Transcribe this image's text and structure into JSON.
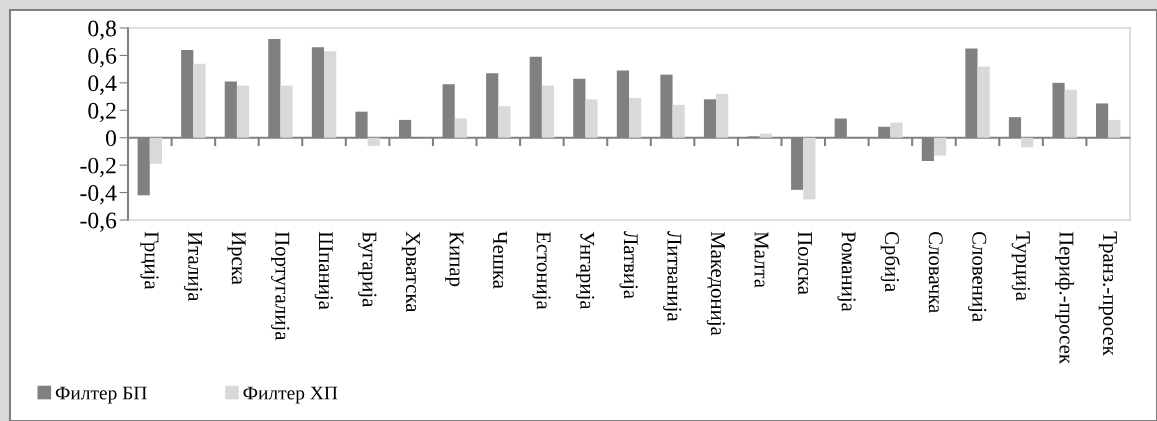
{
  "chart_data": {
    "type": "bar",
    "categories": [
      "Грција",
      "Италија",
      "Ирска",
      "Португалија",
      "Шпанија",
      "Бугарија",
      "Хрватска",
      "Кипар",
      "Чешка",
      "Естонија",
      "Унгарија",
      "Латвија",
      "Литванија",
      "Македонија",
      "Малта",
      "Полска",
      "Романија",
      "Србија",
      "Словачка",
      "Словенија",
      "Турција",
      "Периф.-просек",
      "Транз.-просек"
    ],
    "series": [
      {
        "name": "Филтер БП",
        "color": "#808080",
        "values": [
          -0.42,
          0.64,
          0.41,
          0.72,
          0.66,
          0.19,
          0.13,
          0.39,
          0.47,
          0.59,
          0.43,
          0.49,
          0.46,
          0.28,
          0.01,
          -0.38,
          0.14,
          0.08,
          -0.17,
          0.65,
          0.15,
          0.4,
          0.25
        ]
      },
      {
        "name": "Филтер ХП",
        "color": "#d9d9d9",
        "values": [
          -0.19,
          0.54,
          0.38,
          0.38,
          0.63,
          -0.06,
          0,
          0.14,
          0.23,
          0.38,
          0.28,
          0.29,
          0.24,
          0.32,
          0.03,
          -0.45,
          null,
          0.11,
          -0.13,
          0.52,
          -0.07,
          0.35,
          0.13
        ]
      }
    ],
    "ylim": [
      -0.6,
      0.8
    ],
    "yticks": [
      {
        "value": -0.6,
        "label": "-0,6"
      },
      {
        "value": -0.4,
        "label": "-0,4"
      },
      {
        "value": -0.2,
        "label": "-0,2"
      },
      0,
      {
        "value": 0.2,
        "label": "0,2"
      },
      {
        "value": 0.4,
        "label": "0,4"
      },
      {
        "value": 0.6,
        "label": "0,6"
      },
      {
        "value": 0.8,
        "label": "0,8"
      }
    ],
    "legend": "bottom left"
  }
}
